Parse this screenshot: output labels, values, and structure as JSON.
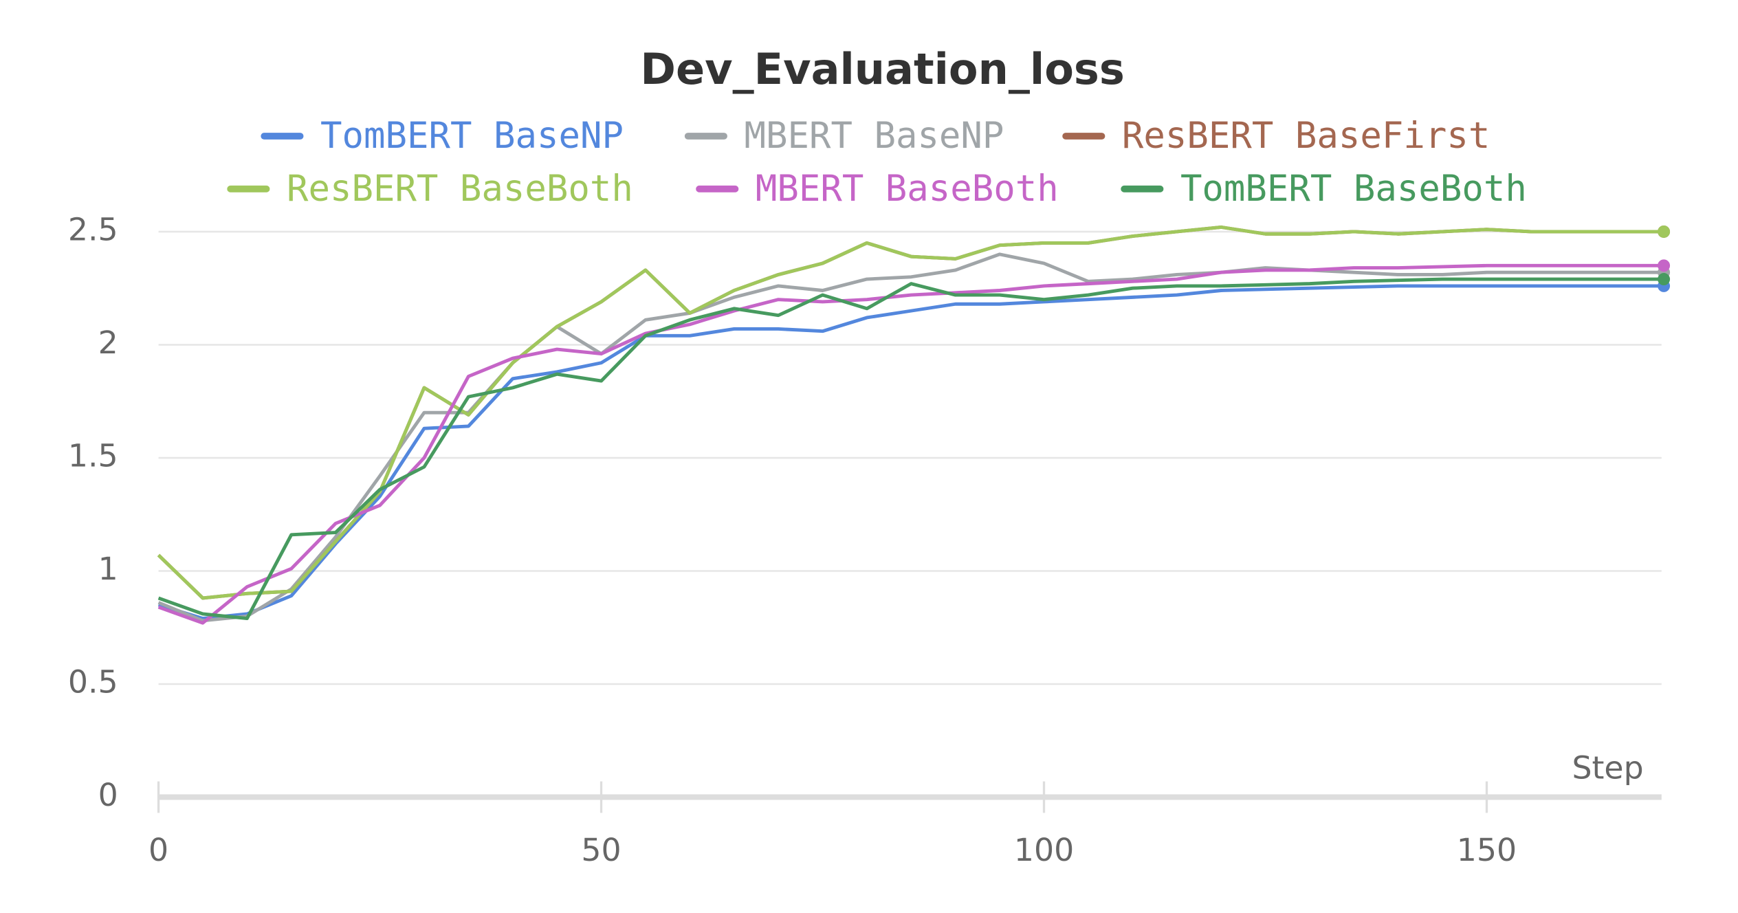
{
  "chart_data": {
    "type": "line",
    "title": "Dev_Evaluation_loss",
    "x_label": "Step",
    "x": [
      0,
      5,
      10,
      15,
      20,
      25,
      30,
      35,
      40,
      45,
      50,
      55,
      60,
      65,
      70,
      75,
      80,
      85,
      90,
      95,
      100,
      105,
      110,
      115,
      120,
      125,
      130,
      135,
      140,
      145,
      150,
      155,
      160,
      165,
      170
    ],
    "xlim": [
      0,
      170
    ],
    "xticks": [
      0,
      50,
      100,
      150
    ],
    "ylim": [
      0,
      2.6
    ],
    "yticks": [
      0,
      0.5,
      1,
      1.5,
      2,
      2.5
    ],
    "grid": true,
    "legend": "top",
    "series": [
      {
        "name": "TomBERT BaseNP",
        "color": "#5387dd",
        "values": [
          0.85,
          0.79,
          0.81,
          0.89,
          1.12,
          1.33,
          1.63,
          1.64,
          1.85,
          1.88,
          1.92,
          2.04,
          2.04,
          2.07,
          2.07,
          2.06,
          2.12,
          2.15,
          2.18,
          2.18,
          2.19,
          2.2,
          2.21,
          2.22,
          2.24,
          2.245,
          2.25,
          2.255,
          2.26,
          2.26,
          2.26,
          2.26,
          2.26,
          2.26,
          2.26
        ]
      },
      {
        "name": "MBERT BaseNP",
        "color": "#a0a5a8",
        "values": [
          0.86,
          0.78,
          0.8,
          0.92,
          1.15,
          1.42,
          1.7,
          1.7,
          1.92,
          2.08,
          1.96,
          2.11,
          2.14,
          2.21,
          2.26,
          2.24,
          2.29,
          2.3,
          2.33,
          2.4,
          2.36,
          2.28,
          2.29,
          2.31,
          2.32,
          2.34,
          2.33,
          2.32,
          2.31,
          2.31,
          2.32,
          2.32,
          2.32,
          2.32,
          2.32
        ]
      },
      {
        "name": "ResBERT BaseFirst",
        "color": "#a46750",
        "values": [
          1.07,
          0.88,
          0.9,
          0.91,
          1.13,
          1.35,
          1.81,
          1.69,
          1.92,
          2.08,
          2.19,
          2.33,
          2.14,
          2.24,
          2.31,
          2.36,
          2.45,
          2.39,
          2.38,
          2.44,
          2.45,
          2.45,
          2.48,
          2.5,
          2.52,
          2.49,
          2.49,
          2.5,
          2.49,
          2.5,
          2.51,
          2.5,
          2.5,
          2.5,
          2.5
        ]
      },
      {
        "name": "ResBERT BaseBoth",
        "color": "#a0c75c",
        "values": [
          1.07,
          0.88,
          0.9,
          0.91,
          1.13,
          1.35,
          1.81,
          1.69,
          1.92,
          2.08,
          2.19,
          2.33,
          2.14,
          2.24,
          2.31,
          2.36,
          2.45,
          2.39,
          2.38,
          2.44,
          2.45,
          2.45,
          2.48,
          2.5,
          2.52,
          2.49,
          2.49,
          2.5,
          2.49,
          2.5,
          2.51,
          2.5,
          2.5,
          2.5,
          2.5
        ]
      },
      {
        "name": "MBERT BaseBoth",
        "color": "#c565c7",
        "values": [
          0.84,
          0.77,
          0.93,
          1.01,
          1.21,
          1.29,
          1.5,
          1.86,
          1.94,
          1.98,
          1.96,
          2.05,
          2.09,
          2.15,
          2.2,
          2.19,
          2.2,
          2.22,
          2.23,
          2.24,
          2.26,
          2.27,
          2.28,
          2.29,
          2.32,
          2.33,
          2.33,
          2.34,
          2.34,
          2.345,
          2.35,
          2.35,
          2.35,
          2.35,
          2.35
        ]
      },
      {
        "name": "TomBERT BaseBoth",
        "color": "#479a5f",
        "values": [
          0.88,
          0.81,
          0.79,
          1.16,
          1.17,
          1.36,
          1.46,
          1.77,
          1.81,
          1.87,
          1.84,
          2.04,
          2.11,
          2.16,
          2.13,
          2.22,
          2.16,
          2.27,
          2.22,
          2.22,
          2.2,
          2.22,
          2.25,
          2.26,
          2.26,
          2.265,
          2.27,
          2.28,
          2.285,
          2.29,
          2.29,
          2.29,
          2.29,
          2.29,
          2.29
        ]
      }
    ]
  }
}
